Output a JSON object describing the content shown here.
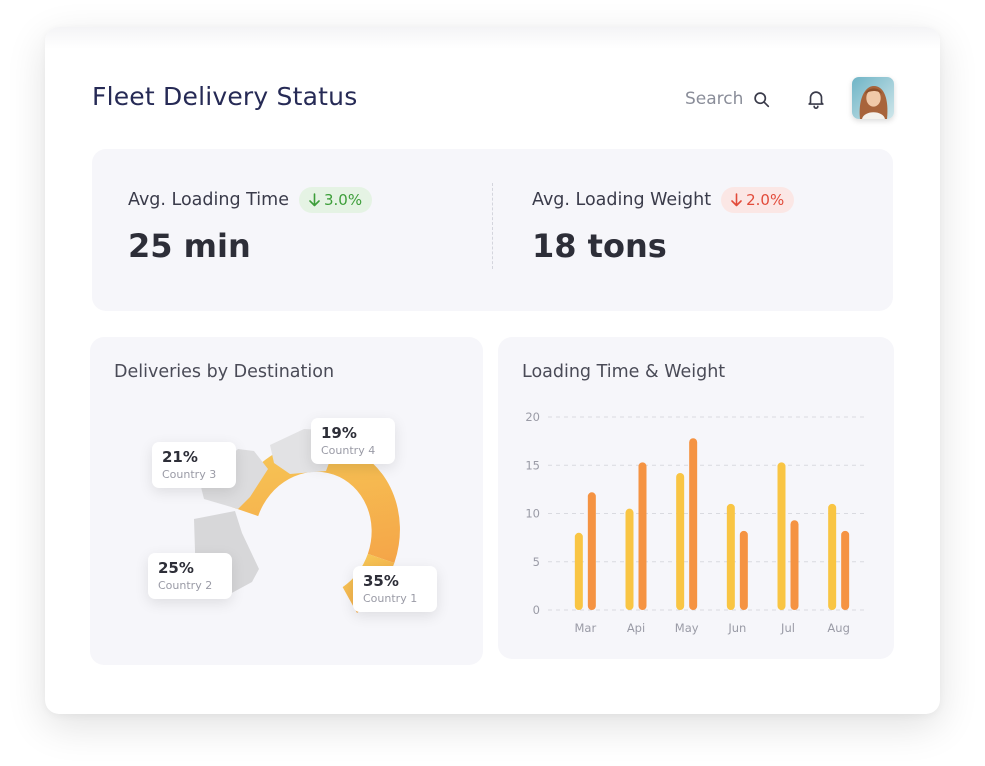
{
  "header": {
    "title": "Fleet Delivery Status",
    "search_label": "Search"
  },
  "kpis": [
    {
      "label": "Avg. Loading Time",
      "change": "3.0%",
      "direction": "down",
      "trend_color": "#3d9e3a",
      "value": "25 min"
    },
    {
      "label": "Avg. Loading Weight",
      "change": "2.0%",
      "direction": "down",
      "trend_color": "#e24b3a",
      "value": "18 tons"
    }
  ],
  "donut": {
    "title": "Deliveries by Destination",
    "slices": [
      {
        "country": "Country 1",
        "pct": "35%",
        "share": 35,
        "highlighted": true
      },
      {
        "country": "Country 2",
        "pct": "25%",
        "share": 25,
        "highlighted": false
      },
      {
        "country": "Country 3",
        "pct": "21%",
        "share": 21,
        "highlighted": false
      },
      {
        "country": "Country 4",
        "pct": "19%",
        "share": 19,
        "highlighted": false
      }
    ]
  },
  "chart_data": {
    "type": "bar",
    "title": "Loading Time & Weight",
    "categories": [
      "Mar",
      "Api",
      "May",
      "Jun",
      "Jul",
      "Aug"
    ],
    "series": [
      {
        "name": "Loading Time",
        "color": "#f9c543",
        "values": [
          8,
          10.5,
          14.2,
          11,
          15.3,
          11
        ]
      },
      {
        "name": "Loading Weight",
        "color": "#f59342",
        "values": [
          12.2,
          15.3,
          17.8,
          8.2,
          9.3,
          8.2
        ]
      }
    ],
    "ylim": [
      0,
      20
    ],
    "yticks": [
      "0",
      "5",
      "10",
      "15",
      "20"
    ],
    "grid": true,
    "xlabel": "",
    "ylabel": ""
  }
}
